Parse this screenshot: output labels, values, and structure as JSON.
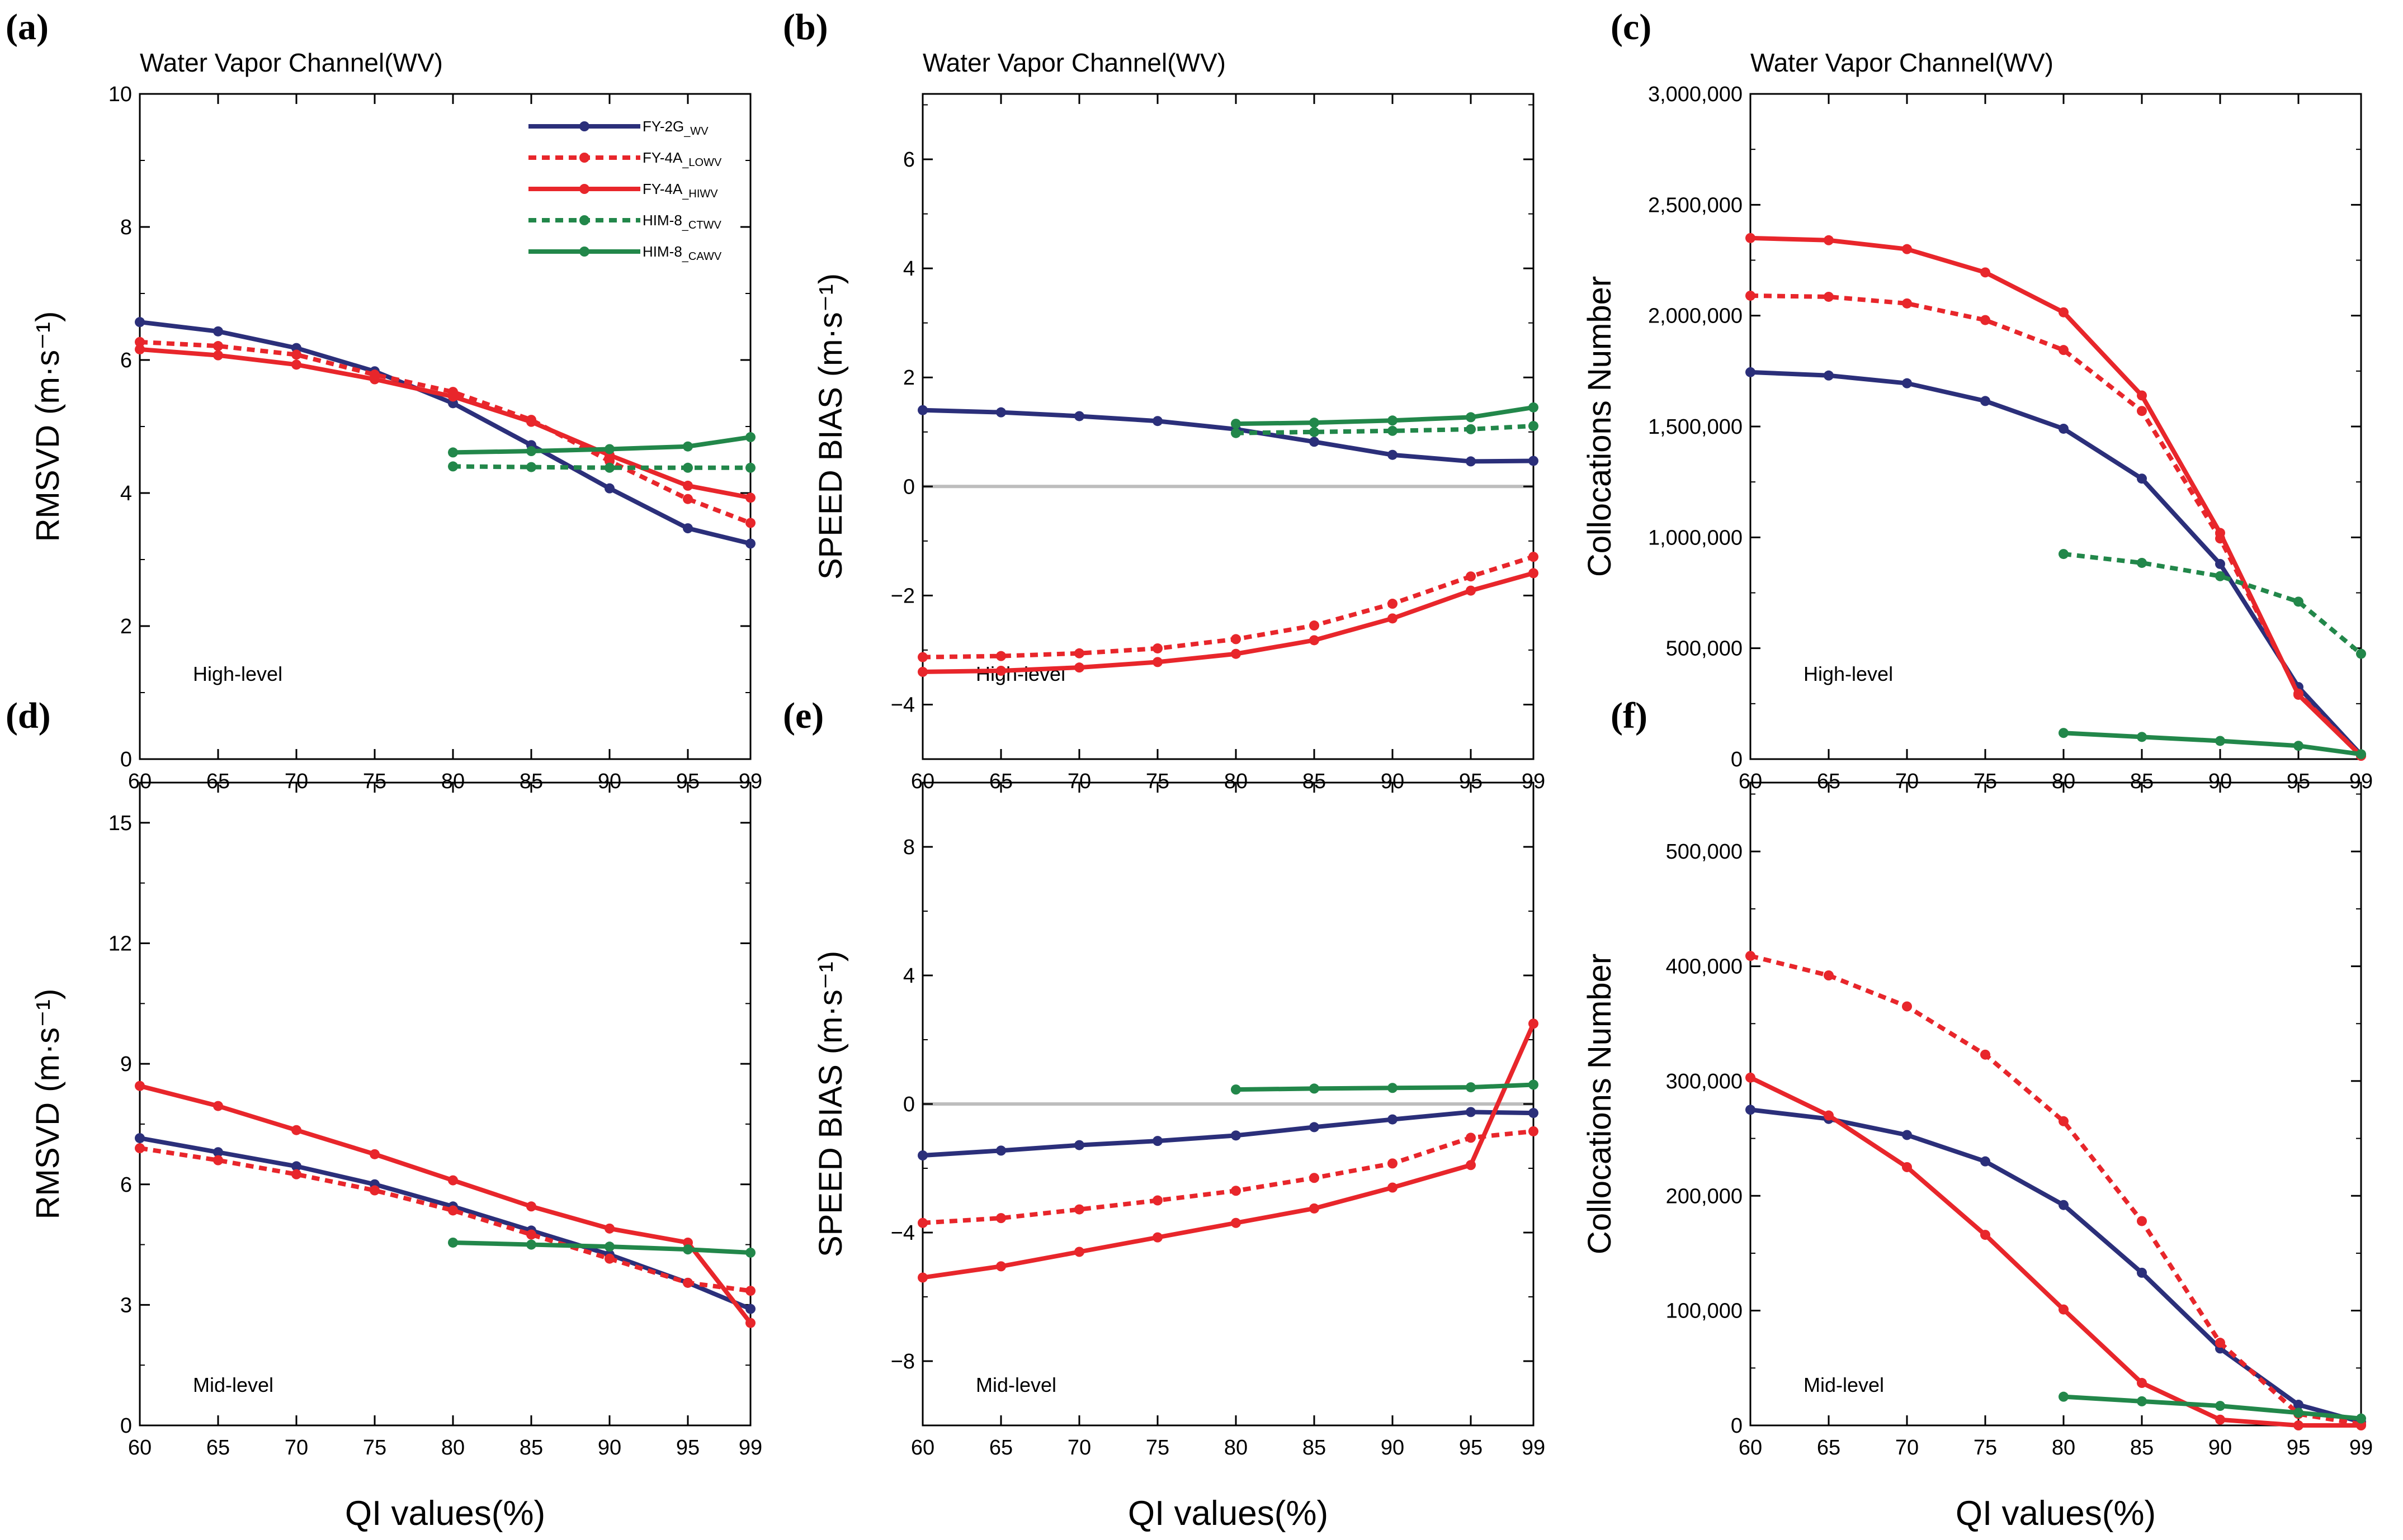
{
  "figure": {
    "x_axis_title": "QI values(%)",
    "x_categories": [
      "60",
      "65",
      "70",
      "75",
      "80",
      "85",
      "90",
      "95",
      "99"
    ]
  },
  "legend": [
    {
      "name": "FY-2G",
      "subscript": "_WV",
      "color": "#2b2f7a",
      "dashed": false
    },
    {
      "name": "FY-4A",
      "subscript": "_LOWV",
      "color": "#e8262b",
      "dashed": true
    },
    {
      "name": "FY-4A",
      "subscript": "_HIWV",
      "color": "#e8262b",
      "dashed": false
    },
    {
      "name": "HIM-8",
      "subscript": "_CTWV",
      "color": "#22874a",
      "dashed": true
    },
    {
      "name": "HIM-8",
      "subscript": "_CAWV",
      "color": "#22874a",
      "dashed": false
    }
  ],
  "chart_data": [
    {
      "panel": "(a)",
      "type": "line",
      "title": "Water Vapor Channel(WV)",
      "level_label": "High-level",
      "ylabel": "RMSVD",
      "yunit": "(m·s⁻¹)",
      "ylim": [
        0,
        10
      ],
      "yticks": [
        {
          "v": 0,
          "label": "0"
        },
        {
          "v": 2,
          "label": "2"
        },
        {
          "v": 4,
          "label": "4"
        },
        {
          "v": 6,
          "label": "6"
        },
        {
          "v": 8,
          "label": "8"
        },
        {
          "v": 10,
          "label": "10"
        }
      ],
      "show_xlabels": true,
      "show_xtitle": false,
      "zero_line": false,
      "show_legend": true,
      "series": [
        {
          "key": "FY-2G_WV",
          "start": 0,
          "values": [
            6.57,
            6.43,
            6.18,
            5.83,
            5.35,
            4.72,
            4.07,
            3.47,
            3.24
          ]
        },
        {
          "key": "FY-4A_LOWV",
          "start": 0,
          "values": [
            6.27,
            6.21,
            6.08,
            5.78,
            5.52,
            5.1,
            4.48,
            3.91,
            3.55
          ]
        },
        {
          "key": "FY-4A_HIWV",
          "start": 0,
          "values": [
            6.16,
            6.07,
            5.93,
            5.71,
            5.45,
            5.07,
            4.57,
            4.11,
            3.93
          ]
        },
        {
          "key": "HIM-8_CTWV",
          "start": 4,
          "values": [
            4.4,
            4.39,
            4.38,
            4.38,
            4.38
          ]
        },
        {
          "key": "HIM-8_CAWV",
          "start": 4,
          "values": [
            4.61,
            4.63,
            4.66,
            4.7,
            4.84
          ]
        }
      ]
    },
    {
      "panel": "(b)",
      "type": "line",
      "title": "Water Vapor Channel(WV)",
      "level_label": "High-level",
      "ylabel": "SPEED BIAS",
      "yunit": "(m·s⁻¹)",
      "ylim": [
        -5,
        7.2
      ],
      "yticks": [
        {
          "v": -4,
          "label": "−4"
        },
        {
          "v": -2,
          "label": "−2"
        },
        {
          "v": 0,
          "label": "0"
        },
        {
          "v": 2,
          "label": "2"
        },
        {
          "v": 4,
          "label": "4"
        },
        {
          "v": 6,
          "label": "6"
        }
      ],
      "show_xlabels": true,
      "show_xtitle": false,
      "zero_line": true,
      "show_legend": false,
      "series": [
        {
          "key": "FY-2G_WV",
          "start": 0,
          "values": [
            1.4,
            1.36,
            1.29,
            1.2,
            1.05,
            0.82,
            0.58,
            0.46,
            0.47
          ]
        },
        {
          "key": "FY-4A_LOWV",
          "start": 0,
          "values": [
            -3.13,
            -3.11,
            -3.06,
            -2.97,
            -2.8,
            -2.55,
            -2.15,
            -1.65,
            -1.29
          ]
        },
        {
          "key": "FY-4A_HIWV",
          "start": 0,
          "values": [
            -3.4,
            -3.38,
            -3.32,
            -3.22,
            -3.07,
            -2.82,
            -2.42,
            -1.91,
            -1.59
          ]
        },
        {
          "key": "HIM-8_CTWV",
          "start": 4,
          "values": [
            0.98,
            1.0,
            1.02,
            1.05,
            1.11
          ]
        },
        {
          "key": "HIM-8_CAWV",
          "start": 4,
          "values": [
            1.15,
            1.17,
            1.21,
            1.27,
            1.45
          ]
        }
      ]
    },
    {
      "panel": "(c)",
      "type": "line",
      "title": "Water Vapor Channel(WV)",
      "level_label": "High-level",
      "ylabel": "Collocations Number",
      "yunit": "",
      "ylim": [
        0,
        3000000
      ],
      "yticks": [
        {
          "v": 0,
          "label": "0"
        },
        {
          "v": 500000,
          "label": "500,000"
        },
        {
          "v": 1000000,
          "label": "1,000,000"
        },
        {
          "v": 1500000,
          "label": "1,500,000"
        },
        {
          "v": 2000000,
          "label": "2,000,000"
        },
        {
          "v": 2500000,
          "label": "2,500,000"
        },
        {
          "v": 3000000,
          "label": "3,000,000"
        }
      ],
      "show_xlabels": true,
      "show_xtitle": false,
      "zero_line": false,
      "show_legend": false,
      "series": [
        {
          "key": "FY-2G_WV",
          "start": 0,
          "values": [
            1745000,
            1730000,
            1695000,
            1615000,
            1490000,
            1265000,
            880000,
            325000,
            20000
          ]
        },
        {
          "key": "FY-4A_LOWV",
          "start": 0,
          "values": [
            2090000,
            2085000,
            2055000,
            1980000,
            1845000,
            1570000,
            995000,
            295000,
            15000
          ]
        },
        {
          "key": "FY-4A_HIWV",
          "start": 0,
          "values": [
            2350000,
            2340000,
            2300000,
            2195000,
            2015000,
            1640000,
            1020000,
            290000,
            15000
          ]
        },
        {
          "key": "HIM-8_CTWV",
          "start": 4,
          "values": [
            925000,
            885000,
            825000,
            710000,
            475000
          ]
        },
        {
          "key": "HIM-8_CAWV",
          "start": 4,
          "values": [
            118000,
            100000,
            82000,
            60000,
            22000
          ]
        }
      ]
    },
    {
      "panel": "(d)",
      "type": "line",
      "title": "",
      "level_label": "Mid-level",
      "ylabel": "RMSVD",
      "yunit": "(m·s⁻¹)",
      "ylim": [
        0,
        16
      ],
      "yticks": [
        {
          "v": 0,
          "label": "0"
        },
        {
          "v": 3,
          "label": "3"
        },
        {
          "v": 6,
          "label": "6"
        },
        {
          "v": 9,
          "label": "9"
        },
        {
          "v": 12,
          "label": "12"
        },
        {
          "v": 15,
          "label": "15"
        }
      ],
      "show_xlabels": true,
      "show_xtitle": true,
      "zero_line": false,
      "show_legend": false,
      "series": [
        {
          "key": "FY-2G_WV",
          "start": 0,
          "values": [
            7.15,
            6.8,
            6.45,
            6.0,
            5.45,
            4.85,
            4.25,
            3.55,
            2.9
          ]
        },
        {
          "key": "FY-4A_LOWV",
          "start": 0,
          "values": [
            6.9,
            6.6,
            6.25,
            5.85,
            5.35,
            4.75,
            4.15,
            3.55,
            3.35
          ]
        },
        {
          "key": "FY-4A_HIWV",
          "start": 0,
          "values": [
            8.45,
            7.95,
            7.35,
            6.75,
            6.1,
            5.45,
            4.9,
            4.55,
            2.55
          ]
        },
        {
          "key": "HIM-8_CAWV",
          "start": 4,
          "values": [
            4.55,
            4.5,
            4.45,
            4.38,
            4.3
          ]
        }
      ]
    },
    {
      "panel": "(e)",
      "type": "line",
      "title": "",
      "level_label": "Mid-level",
      "ylabel": "SPEED BIAS",
      "yunit": "(m·s⁻¹)",
      "ylim": [
        -10,
        10
      ],
      "yticks": [
        {
          "v": -8,
          "label": "−8"
        },
        {
          "v": -4,
          "label": "−4"
        },
        {
          "v": 0,
          "label": "0"
        },
        {
          "v": 4,
          "label": "4"
        },
        {
          "v": 8,
          "label": "8"
        }
      ],
      "show_xlabels": true,
      "show_xtitle": true,
      "zero_line": true,
      "show_legend": false,
      "series": [
        {
          "key": "FY-2G_WV",
          "start": 0,
          "values": [
            -1.6,
            -1.45,
            -1.28,
            -1.15,
            -0.98,
            -0.72,
            -0.48,
            -0.25,
            -0.28
          ]
        },
        {
          "key": "FY-4A_LOWV",
          "start": 0,
          "values": [
            -3.7,
            -3.55,
            -3.28,
            -3.0,
            -2.7,
            -2.3,
            -1.85,
            -1.05,
            -0.85
          ]
        },
        {
          "key": "FY-4A_HIWV",
          "start": 0,
          "values": [
            -5.4,
            -5.05,
            -4.6,
            -4.15,
            -3.7,
            -3.25,
            -2.6,
            -1.9,
            2.5
          ]
        },
        {
          "key": "HIM-8_CAWV",
          "start": 4,
          "values": [
            0.45,
            0.48,
            0.5,
            0.52,
            0.6
          ]
        }
      ]
    },
    {
      "panel": "(f)",
      "type": "line",
      "title": "",
      "level_label": "Mid-level",
      "ylabel": "Collocations Number",
      "yunit": "",
      "ylim": [
        0,
        560000
      ],
      "yticks": [
        {
          "v": 0,
          "label": "0"
        },
        {
          "v": 100000,
          "label": "100,000"
        },
        {
          "v": 200000,
          "label": "200,000"
        },
        {
          "v": 300000,
          "label": "300,000"
        },
        {
          "v": 400000,
          "label": "400,000"
        },
        {
          "v": 500000,
          "label": "500,000"
        }
      ],
      "show_xlabels": true,
      "show_xtitle": true,
      "zero_line": false,
      "show_legend": false,
      "series": [
        {
          "key": "FY-2G_WV",
          "start": 0,
          "values": [
            275000,
            267000,
            253000,
            230000,
            192000,
            133000,
            67000,
            18000,
            3000
          ]
        },
        {
          "key": "FY-4A_LOWV",
          "start": 0,
          "values": [
            409000,
            392000,
            365000,
            323000,
            265000,
            178000,
            72000,
            10000,
            1000
          ]
        },
        {
          "key": "FY-4A_HIWV",
          "start": 0,
          "values": [
            303000,
            270000,
            225000,
            166000,
            101000,
            37000,
            5000,
            0,
            0
          ]
        },
        {
          "key": "HIM-8_CAWV",
          "start": 4,
          "values": [
            25000,
            21000,
            17000,
            11000,
            6000
          ]
        }
      ]
    }
  ]
}
